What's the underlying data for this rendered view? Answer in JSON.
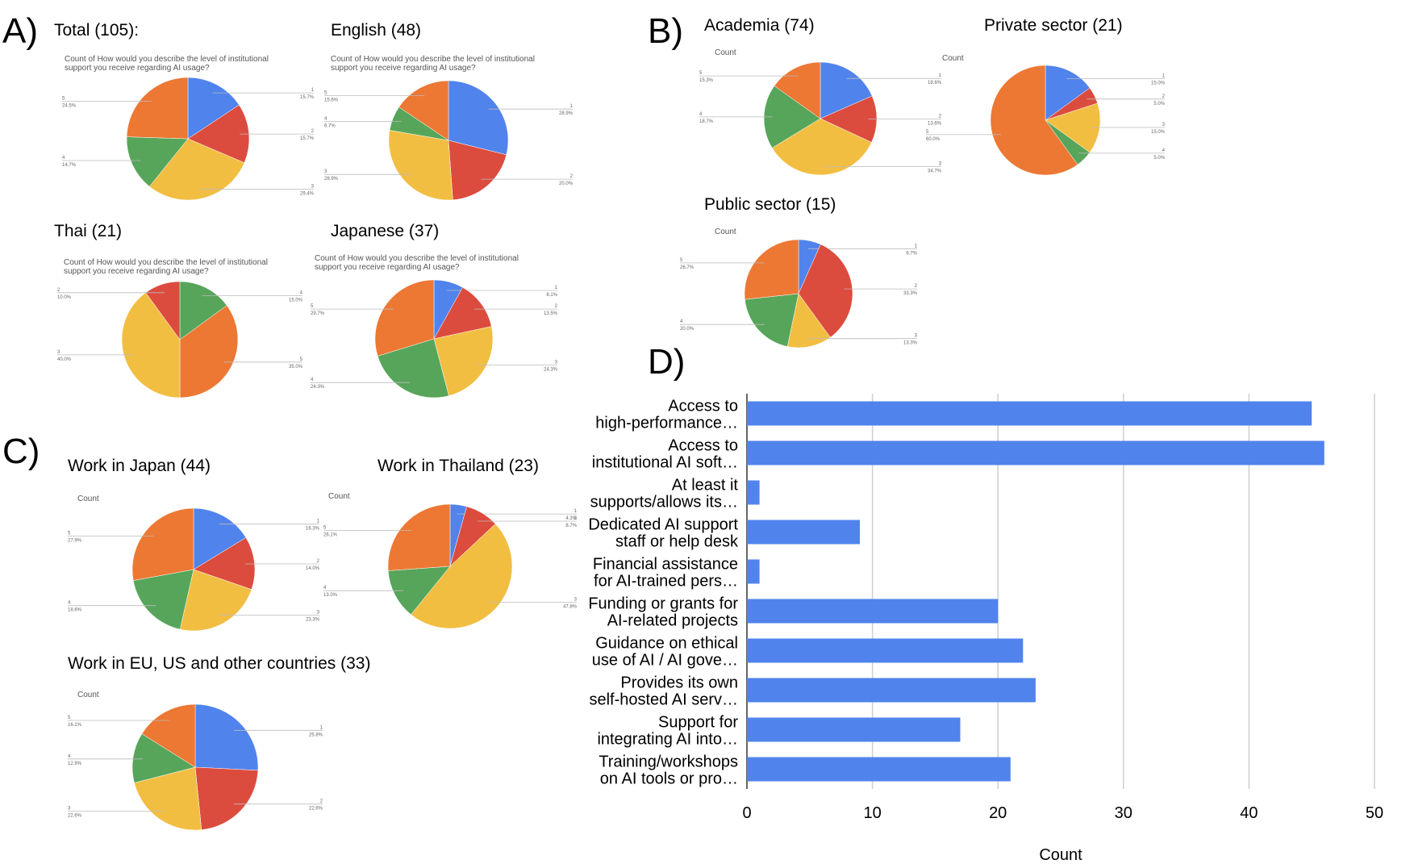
{
  "colors": {
    "1": "#5083EC",
    "2": "#DC4C3E",
    "3": "#F2BE42",
    "4": "#57A55A",
    "5": "#EC7834",
    "bar": "#5083EC",
    "grid": "#CFCFCF"
  },
  "panels": {
    "A": "A)",
    "B": "B)",
    "C": "C)",
    "D": "D)"
  },
  "chart_data": [
    {
      "type": "pie",
      "title": "Total (105):",
      "subtitle": [
        "Count of How would you describe the level of institutional",
        "support you receive regarding AI usage?"
      ],
      "slices": [
        {
          "label": "1",
          "percent": 15.7
        },
        {
          "label": "2",
          "percent": 15.7
        },
        {
          "label": "3",
          "percent": 29.4
        },
        {
          "label": "4",
          "percent": 14.7
        },
        {
          "label": "5",
          "percent": 24.5
        }
      ]
    },
    {
      "type": "pie",
      "title": "English (48)",
      "subtitle": [
        "Count of How would you describe the level of institutional",
        "support you receive regarding AI usage?"
      ],
      "slices": [
        {
          "label": "1",
          "percent": 28.9
        },
        {
          "label": "2",
          "percent": 20.0
        },
        {
          "label": "3",
          "percent": 28.9
        },
        {
          "label": "4",
          "percent": 6.7
        },
        {
          "label": "5",
          "percent": 15.6
        }
      ]
    },
    {
      "type": "pie",
      "title": "Thai (21)",
      "subtitle": [
        "Count of How would you describe the level of institutional",
        "support you receive regarding AI usage?"
      ],
      "slices": [
        {
          "label": "4",
          "percent": 15.0
        },
        {
          "label": "5",
          "percent": 35.0
        },
        {
          "label": "3",
          "percent": 40.0
        },
        {
          "label": "2",
          "percent": 10.0
        }
      ]
    },
    {
      "type": "pie",
      "title": "Japanese (37)",
      "subtitle": [
        "Count of How would you describe the level of institutional",
        "support you receive regarding AI usage?"
      ],
      "slices": [
        {
          "label": "1",
          "percent": 8.1
        },
        {
          "label": "2",
          "percent": 13.5
        },
        {
          "label": "3",
          "percent": 24.3
        },
        {
          "label": "4",
          "percent": 24.3
        },
        {
          "label": "5",
          "percent": 29.7
        }
      ]
    },
    {
      "type": "pie",
      "title": "Academia (74)",
      "subtitle": [
        "Count"
      ],
      "slices": [
        {
          "label": "1",
          "percent": 18.6
        },
        {
          "label": "2",
          "percent": 13.6
        },
        {
          "label": "3",
          "percent": 34.7
        },
        {
          "label": "4",
          "percent": 18.7
        },
        {
          "label": "5",
          "percent": 15.3
        }
      ]
    },
    {
      "type": "pie",
      "title": "Private sector (21)",
      "subtitle": [
        "Count"
      ],
      "slices": [
        {
          "label": "1",
          "percent": 15.0
        },
        {
          "label": "2",
          "percent": 5.0
        },
        {
          "label": "3",
          "percent": 15.0
        },
        {
          "label": "4",
          "percent": 5.0
        },
        {
          "label": "5",
          "percent": 60.0
        }
      ]
    },
    {
      "type": "pie",
      "title": "Public sector (15)",
      "subtitle": [
        "Count"
      ],
      "slices": [
        {
          "label": "1",
          "percent": 6.7
        },
        {
          "label": "2",
          "percent": 33.3
        },
        {
          "label": "3",
          "percent": 13.3
        },
        {
          "label": "4",
          "percent": 20.0
        },
        {
          "label": "5",
          "percent": 26.7
        }
      ]
    },
    {
      "type": "pie",
      "title": "Work in Japan (44)",
      "subtitle": [
        "Count"
      ],
      "slices": [
        {
          "label": "1",
          "percent": 16.3
        },
        {
          "label": "2",
          "percent": 14.0
        },
        {
          "label": "3",
          "percent": 23.3
        },
        {
          "label": "4",
          "percent": 18.6
        },
        {
          "label": "5",
          "percent": 27.9
        }
      ]
    },
    {
      "type": "pie",
      "title": "Work in Thailand (23)",
      "subtitle": [
        "Count"
      ],
      "slices": [
        {
          "label": "1",
          "percent": 4.3
        },
        {
          "label": "2",
          "percent": 8.7
        },
        {
          "label": "3",
          "percent": 47.8
        },
        {
          "label": "4",
          "percent": 13.0
        },
        {
          "label": "5",
          "percent": 26.1
        }
      ]
    },
    {
      "type": "pie",
      "title": "Work in EU, US and other countries (33)",
      "subtitle": [
        "Count"
      ],
      "slices": [
        {
          "label": "1",
          "percent": 25.8
        },
        {
          "label": "2",
          "percent": 22.6
        },
        {
          "label": "3",
          "percent": 22.6
        },
        {
          "label": "4",
          "percent": 12.9
        },
        {
          "label": "5",
          "percent": 16.1
        }
      ]
    },
    {
      "type": "bar",
      "orientation": "horizontal",
      "xlabel": "Count",
      "xlim": [
        0,
        50
      ],
      "xticks": [
        0,
        10,
        20,
        30,
        40,
        50
      ],
      "categories": [
        [
          "Access to",
          "high-performance…"
        ],
        [
          "Access to",
          "institutional AI soft…"
        ],
        [
          "At least it",
          "supports/allows its…"
        ],
        [
          "Dedicated AI support",
          "staff or help desk"
        ],
        [
          "Financial assistance",
          "for AI-trained pers…"
        ],
        [
          "Funding or grants for",
          "AI-related projects"
        ],
        [
          "Guidance on ethical",
          "use of AI / AI gove…"
        ],
        [
          "Provides its own",
          "self-hosted AI serv…"
        ],
        [
          "Support for",
          "integrating AI into…"
        ],
        [
          "Training/workshops",
          "on AI tools or pro…"
        ]
      ],
      "values": [
        45,
        46,
        1,
        9,
        1,
        20,
        22,
        23,
        17,
        21
      ]
    }
  ]
}
